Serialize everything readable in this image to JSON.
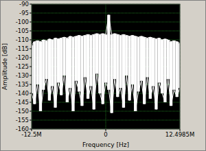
{
  "chart_data": {
    "type": "line",
    "x_label": "Frequency [Hz]",
    "y_label": "Amplitude [dB]",
    "x": [
      -12500000,
      -12000000,
      -11500000,
      -11000000,
      -10500000,
      -10000000,
      -9500000,
      -9000000,
      -8500000,
      -8000000,
      -7500000,
      -7000000,
      -6500000,
      -6000000,
      -5500000,
      -5000000,
      -4500000,
      -4000000,
      -3500000,
      -3000000,
      -2500000,
      -2000000,
      -1500000,
      -1000000,
      -500000,
      0,
      500000,
      1000000,
      1500000,
      2000000,
      2500000,
      3000000,
      3500000,
      4000000,
      4500000,
      5000000,
      5500000,
      6000000,
      6500000,
      7000000,
      7500000,
      8000000,
      8500000,
      9000000,
      9500000,
      10000000,
      10500000,
      11000000,
      11500000,
      12000000,
      12498500
    ],
    "series": [
      {
        "color": "#ffffff",
        "values": [
          -113,
          -111,
          -110.5,
          -111,
          -110,
          -110.5,
          -109.5,
          -110,
          -109,
          -109.5,
          -109,
          -108.5,
          -109,
          -108,
          -108.5,
          -108,
          -107.5,
          -108,
          -107.5,
          -107,
          -107.5,
          -107,
          -106.5,
          -107,
          -106.5,
          -107,
          -96,
          -107,
          -106.5,
          -107,
          -107.5,
          -107,
          -107.5,
          -108,
          -107.5,
          -108,
          -108.5,
          -108,
          -108.5,
          -109,
          -108.5,
          -109,
          -109.5,
          -109,
          -110,
          -109.5,
          -110,
          -111,
          -110.5,
          -111,
          -112
        ]
      },
      {
        "color": "#ffffff",
        "values": [
          -140,
          -146,
          -135,
          -150,
          -138,
          -132,
          -144,
          -136,
          -148,
          -134,
          -141,
          -130,
          -145,
          -137,
          -150,
          -133,
          -139,
          -147,
          -131,
          -143,
          -136,
          -149,
          -129,
          -140,
          -146,
          -134,
          -138,
          -151,
          -132,
          -142,
          -137,
          -148,
          -130,
          -144,
          -135,
          -150,
          -139,
          -133,
          -146,
          -131,
          -143,
          -136,
          -149,
          -134,
          -140,
          -145,
          -132,
          -147,
          -138,
          -142,
          -137
        ]
      }
    ],
    "xlim": [
      -12500000,
      12498500
    ],
    "ylim": [
      -160,
      -90
    ],
    "xticks": [
      {
        "value": -12500000,
        "label": "-12.5M"
      },
      0,
      {
        "value": 12498500,
        "label": "12.4985M"
      }
    ],
    "yticks": [
      -160,
      -155,
      -150,
      -145,
      -140,
      -135,
      -130,
      -125,
      -120,
      -115,
      -110,
      -105,
      -100,
      -95,
      -90
    ],
    "grid": true
  }
}
